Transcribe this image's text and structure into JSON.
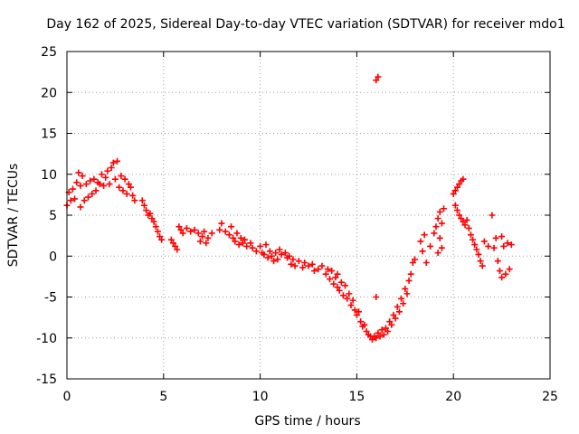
{
  "chart_data": {
    "type": "scatter",
    "title": "Day 162 of 2025, Sidereal Day-to-day VTEC variation (SDTVAR) for receiver mdo1",
    "xlabel": "GPS time / hours",
    "ylabel": "SDTVAR / TECUs",
    "xlim": [
      0,
      25
    ],
    "ylim": [
      -15,
      25
    ],
    "xticks": [
      0,
      5,
      10,
      15,
      20,
      25
    ],
    "yticks": [
      -15,
      -10,
      -5,
      0,
      5,
      10,
      15,
      20,
      25
    ],
    "xtick_labels": [
      "0",
      "5",
      "10",
      "15",
      "20",
      "25"
    ],
    "ytick_labels": [
      "-15",
      "-10",
      "-5",
      "0",
      "5",
      "10",
      "15",
      "20",
      "25"
    ],
    "grid": true,
    "marker": "+",
    "color": "#ff0000",
    "series": [
      {
        "name": "mdo1",
        "points": [
          [
            0.0,
            6.2
          ],
          [
            0.1,
            7.8
          ],
          [
            0.2,
            6.8
          ],
          [
            0.3,
            8.2
          ],
          [
            0.4,
            7.0
          ],
          [
            0.5,
            9.0
          ],
          [
            0.6,
            10.2
          ],
          [
            0.7,
            8.6
          ],
          [
            0.7,
            6.0
          ],
          [
            0.8,
            9.8
          ],
          [
            0.9,
            6.8
          ],
          [
            1.0,
            8.8
          ],
          [
            1.1,
            7.2
          ],
          [
            1.2,
            9.2
          ],
          [
            1.3,
            7.6
          ],
          [
            1.4,
            9.4
          ],
          [
            1.5,
            8.0
          ],
          [
            1.6,
            9.0
          ],
          [
            1.7,
            8.8
          ],
          [
            1.8,
            10.0
          ],
          [
            1.9,
            8.6
          ],
          [
            2.0,
            9.6
          ],
          [
            2.1,
            10.4
          ],
          [
            2.2,
            8.8
          ],
          [
            2.3,
            10.8
          ],
          [
            2.4,
            11.4
          ],
          [
            2.5,
            9.4
          ],
          [
            2.6,
            11.6
          ],
          [
            2.7,
            8.4
          ],
          [
            2.8,
            9.8
          ],
          [
            2.9,
            8.0
          ],
          [
            3.0,
            9.4
          ],
          [
            3.1,
            7.6
          ],
          [
            3.2,
            8.8
          ],
          [
            3.3,
            8.4
          ],
          [
            3.4,
            7.4
          ],
          [
            3.5,
            6.8
          ],
          [
            3.9,
            6.8
          ],
          [
            4.0,
            6.2
          ],
          [
            4.1,
            5.6
          ],
          [
            4.2,
            5.0
          ],
          [
            4.3,
            5.2
          ],
          [
            4.4,
            4.6
          ],
          [
            4.5,
            4.2
          ],
          [
            4.6,
            3.6
          ],
          [
            4.7,
            3.0
          ],
          [
            4.8,
            2.4
          ],
          [
            4.9,
            2.0
          ],
          [
            5.4,
            2.0
          ],
          [
            5.5,
            1.6
          ],
          [
            5.6,
            1.2
          ],
          [
            5.7,
            0.8
          ],
          [
            5.8,
            3.6
          ],
          [
            5.9,
            3.2
          ],
          [
            6.0,
            2.8
          ],
          [
            6.2,
            3.4
          ],
          [
            6.4,
            3.0
          ],
          [
            6.6,
            3.2
          ],
          [
            6.8,
            2.8
          ],
          [
            6.9,
            1.8
          ],
          [
            7.0,
            2.4
          ],
          [
            7.1,
            3.0
          ],
          [
            7.2,
            1.6
          ],
          [
            7.3,
            2.2
          ],
          [
            7.5,
            2.8
          ],
          [
            7.9,
            3.2
          ],
          [
            8.0,
            4.0
          ],
          [
            8.2,
            3.0
          ],
          [
            8.4,
            2.6
          ],
          [
            8.5,
            3.6
          ],
          [
            8.6,
            2.2
          ],
          [
            8.7,
            1.8
          ],
          [
            8.8,
            2.8
          ],
          [
            8.9,
            1.4
          ],
          [
            9.0,
            2.2
          ],
          [
            9.1,
            1.6
          ],
          [
            9.2,
            2.0
          ],
          [
            9.3,
            1.2
          ],
          [
            9.5,
            1.6
          ],
          [
            9.6,
            1.0
          ],
          [
            9.8,
            0.6
          ],
          [
            10.0,
            1.2
          ],
          [
            10.1,
            0.4
          ],
          [
            10.2,
            0.2
          ],
          [
            10.3,
            1.4
          ],
          [
            10.4,
            -0.2
          ],
          [
            10.5,
            0.6
          ],
          [
            10.6,
            0.0
          ],
          [
            10.7,
            -0.6
          ],
          [
            10.8,
            0.4
          ],
          [
            10.9,
            -0.4
          ],
          [
            11.0,
            0.8
          ],
          [
            11.1,
            0.2
          ],
          [
            11.3,
            0.4
          ],
          [
            11.4,
            -0.2
          ],
          [
            11.5,
            0.0
          ],
          [
            11.6,
            -1.0
          ],
          [
            11.7,
            -0.4
          ],
          [
            11.8,
            -1.2
          ],
          [
            12.0,
            -0.6
          ],
          [
            12.2,
            -1.4
          ],
          [
            12.3,
            -0.8
          ],
          [
            12.5,
            -1.2
          ],
          [
            12.7,
            -1.0
          ],
          [
            12.8,
            -1.8
          ],
          [
            13.0,
            -1.6
          ],
          [
            13.2,
            -1.2
          ],
          [
            13.4,
            -2.2
          ],
          [
            13.5,
            -1.6
          ],
          [
            13.6,
            -2.8
          ],
          [
            13.7,
            -1.8
          ],
          [
            13.8,
            -3.4
          ],
          [
            13.9,
            -2.6
          ],
          [
            14.0,
            -3.8
          ],
          [
            14.0,
            -2.2
          ],
          [
            14.1,
            -4.2
          ],
          [
            14.2,
            -3.2
          ],
          [
            14.3,
            -4.8
          ],
          [
            14.4,
            -3.6
          ],
          [
            14.5,
            -5.2
          ],
          [
            14.6,
            -4.6
          ],
          [
            14.7,
            -6.0
          ],
          [
            14.8,
            -5.4
          ],
          [
            14.9,
            -6.6
          ],
          [
            15.0,
            -7.2
          ],
          [
            15.1,
            -6.8
          ],
          [
            15.2,
            -8.0
          ],
          [
            15.3,
            -8.6
          ],
          [
            15.4,
            -8.4
          ],
          [
            15.5,
            -9.2
          ],
          [
            15.6,
            -9.6
          ],
          [
            15.7,
            -9.8
          ],
          [
            15.8,
            -10.2
          ],
          [
            15.9,
            -9.8
          ],
          [
            16.0,
            -10.0
          ],
          [
            16.1,
            -9.4
          ],
          [
            16.2,
            -9.8
          ],
          [
            16.3,
            -9.0
          ],
          [
            16.4,
            -9.6
          ],
          [
            16.5,
            -8.8
          ],
          [
            16.6,
            -9.2
          ],
          [
            16.7,
            -8.0
          ],
          [
            16.8,
            -8.4
          ],
          [
            16.9,
            -7.2
          ],
          [
            17.0,
            -7.6
          ],
          [
            17.1,
            -6.2
          ],
          [
            17.2,
            -6.8
          ],
          [
            17.3,
            -5.2
          ],
          [
            17.4,
            -5.8
          ],
          [
            17.5,
            -4.0
          ],
          [
            17.6,
            -4.6
          ],
          [
            17.7,
            -3.0
          ],
          [
            17.8,
            -2.2
          ],
          [
            17.9,
            -0.8
          ],
          [
            18.0,
            -0.4
          ],
          [
            16.0,
            21.5
          ],
          [
            16.1,
            21.9
          ],
          [
            16.0,
            -5.0
          ],
          [
            18.3,
            1.8
          ],
          [
            18.4,
            0.6
          ],
          [
            18.5,
            2.6
          ],
          [
            18.6,
            -0.8
          ],
          [
            18.8,
            1.2
          ],
          [
            19.0,
            2.8
          ],
          [
            19.1,
            3.6
          ],
          [
            19.2,
            4.6
          ],
          [
            19.3,
            5.4
          ],
          [
            19.4,
            4.0
          ],
          [
            19.5,
            5.8
          ],
          [
            19.4,
            1.0
          ],
          [
            19.2,
            0.4
          ],
          [
            19.3,
            2.2
          ],
          [
            20.0,
            7.6
          ],
          [
            20.1,
            8.0
          ],
          [
            20.2,
            8.4
          ],
          [
            20.3,
            8.8
          ],
          [
            20.4,
            9.2
          ],
          [
            20.5,
            9.4
          ],
          [
            20.1,
            6.2
          ],
          [
            20.2,
            5.6
          ],
          [
            20.3,
            5.0
          ],
          [
            20.4,
            4.6
          ],
          [
            20.5,
            4.2
          ],
          [
            20.6,
            3.8
          ],
          [
            20.7,
            4.4
          ],
          [
            20.8,
            3.4
          ],
          [
            20.9,
            2.6
          ],
          [
            21.0,
            2.0
          ],
          [
            21.1,
            1.4
          ],
          [
            21.2,
            0.8
          ],
          [
            21.3,
            0.2
          ],
          [
            21.4,
            -0.6
          ],
          [
            21.5,
            -1.2
          ],
          [
            21.6,
            1.8
          ],
          [
            21.8,
            1.2
          ],
          [
            22.0,
            5.0
          ],
          [
            22.1,
            1.0
          ],
          [
            22.2,
            2.2
          ],
          [
            22.3,
            -0.6
          ],
          [
            22.4,
            -1.8
          ],
          [
            22.5,
            2.4
          ],
          [
            22.5,
            -2.6
          ],
          [
            22.6,
            1.2
          ],
          [
            22.7,
            -2.2
          ],
          [
            22.8,
            1.6
          ],
          [
            22.9,
            -1.6
          ],
          [
            23.0,
            1.4
          ]
        ]
      }
    ]
  }
}
